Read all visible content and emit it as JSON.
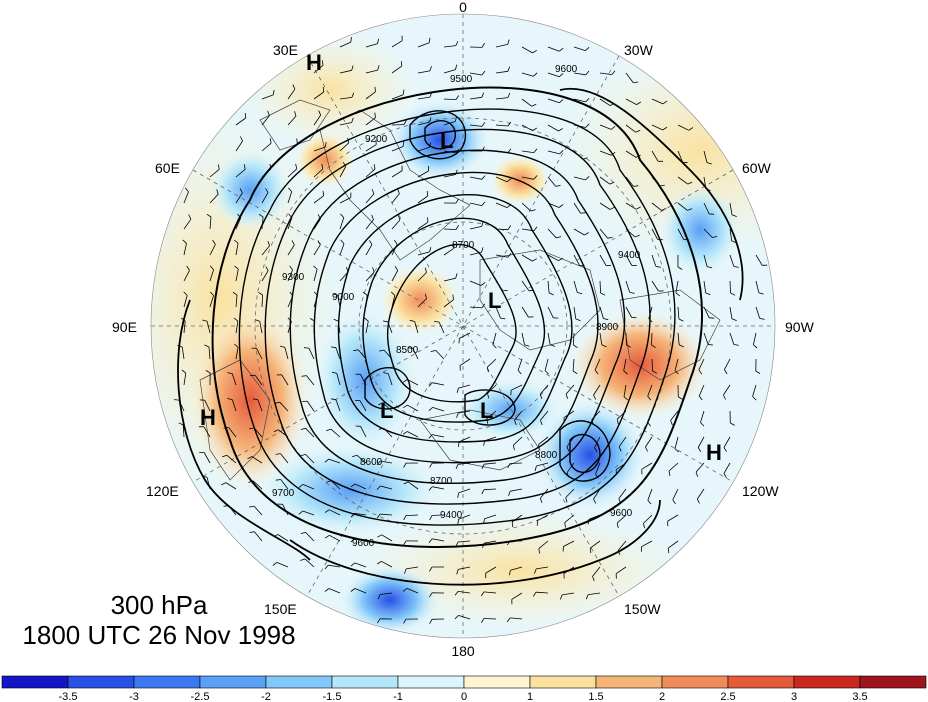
{
  "title": {
    "level": "300 hPa",
    "datetime": "1800 UTC 26 Nov 1998"
  },
  "longitude_labels": [
    "0",
    "30W",
    "60W",
    "90W",
    "120W",
    "150W",
    "180",
    "150E",
    "120E",
    "90E",
    "60E",
    "30E"
  ],
  "pressure_centers": [
    {
      "label": "H",
      "lon_hint": "30E"
    },
    {
      "label": "H",
      "lon_hint": "100E"
    },
    {
      "label": "H",
      "lon_hint": "110W"
    },
    {
      "label": "L",
      "lon_hint": "Scandinavia"
    },
    {
      "label": "L",
      "lon_hint": "pole"
    },
    {
      "label": "L",
      "lon_hint": "150E"
    },
    {
      "label": "L",
      "lon_hint": "180"
    }
  ],
  "contour_labels": [
    "9500",
    "9600",
    "9200",
    "9400",
    "8700",
    "8800",
    "8500",
    "8600",
    "9300",
    "9000",
    "8900",
    "9700"
  ],
  "colorbar": {
    "ticks": [
      "-3.5",
      "-3",
      "-2.5",
      "-2",
      "-1.5",
      "-1",
      "0",
      "1",
      "1.5",
      "2",
      "2.5",
      "3",
      "3.5"
    ],
    "colors": [
      "#1414c8",
      "#2850e6",
      "#3c78f0",
      "#5aa0f5",
      "#82c8fa",
      "#b4e6fa",
      "#dcf5fa",
      "#fff5d2",
      "#fae1a0",
      "#f5b478",
      "#f08c5a",
      "#e65a3c",
      "#c8281e",
      "#a0141e"
    ]
  }
}
